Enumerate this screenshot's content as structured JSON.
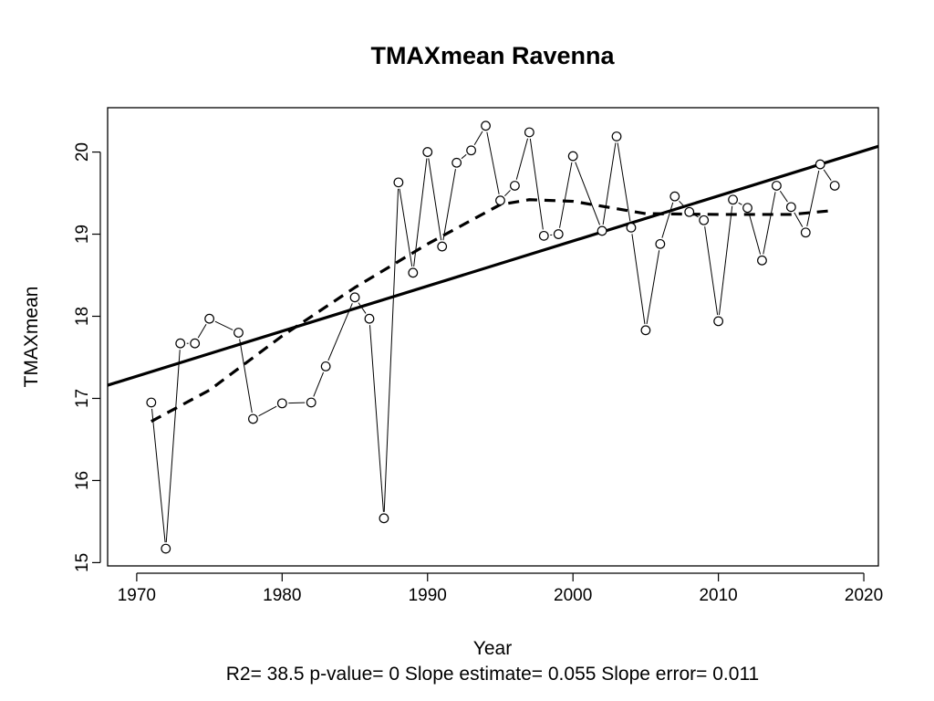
{
  "chart_data": {
    "type": "scatter",
    "title": "TMAXmean   Ravenna",
    "xlabel": "Year",
    "ylabel": "TMAXmean",
    "stats_line": "R2= 38.5  p-value= 0  Slope estimate= 0.055  Slope error= 0.011",
    "xlim": [
      1968,
      2021
    ],
    "ylim": [
      14.96,
      20.54
    ],
    "x_ticks": [
      1970,
      1980,
      1990,
      2000,
      2010,
      2020
    ],
    "y_ticks": [
      15,
      16,
      17,
      18,
      19,
      20
    ],
    "grid": false,
    "legend": "none",
    "series": [
      {
        "type": "scatter-line",
        "marker": "open-circle",
        "x": [
          1971,
          1972,
          1973,
          1974,
          1975,
          1977,
          1978,
          1980,
          1982,
          1983,
          1985,
          1986,
          1987,
          1988,
          1989,
          1990,
          1991,
          1992,
          1993,
          1994,
          1995,
          1996,
          1997,
          1998,
          1999,
          2000,
          2002,
          2003,
          2004,
          2005,
          2006,
          2007,
          2008,
          2009,
          2010,
          2011,
          2012,
          2013,
          2014,
          2015,
          2016,
          2017,
          2018
        ],
        "values": [
          16.95,
          15.17,
          17.67,
          17.67,
          17.97,
          17.8,
          16.75,
          16.94,
          16.95,
          17.39,
          18.23,
          17.97,
          15.54,
          19.63,
          18.53,
          20.0,
          18.85,
          19.87,
          20.02,
          20.32,
          19.41,
          19.59,
          20.24,
          18.98,
          19.0,
          19.95,
          19.04,
          20.19,
          19.08,
          17.83,
          18.88,
          19.46,
          19.27,
          19.17,
          17.94,
          19.42,
          19.32,
          18.68,
          19.59,
          19.33,
          19.02,
          19.85,
          19.59
        ]
      },
      {
        "type": "line",
        "style": "solid",
        "x": [
          1968,
          2021
        ],
        "values": [
          17.16,
          20.07
        ]
      },
      {
        "type": "line",
        "style": "dashed",
        "x": [
          1971,
          1975,
          1980,
          1985,
          1990,
          1995,
          1997,
          2000,
          2005,
          2010,
          2015,
          2018
        ],
        "values": [
          16.72,
          17.1,
          17.76,
          18.35,
          18.88,
          19.36,
          19.42,
          19.4,
          19.25,
          19.24,
          19.24,
          19.29
        ]
      }
    ]
  }
}
